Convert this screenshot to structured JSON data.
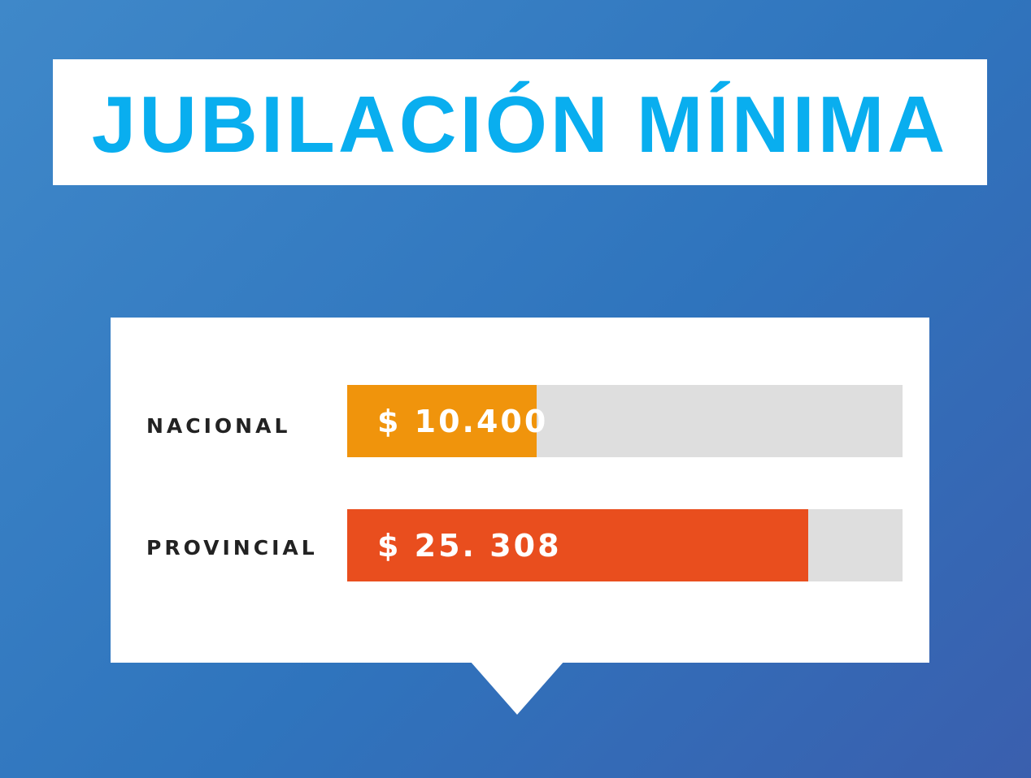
{
  "header": {
    "title": "JUBILACIÓN MÍNIMA"
  },
  "colors": {
    "title": "#09aeef",
    "nacional_bar": "#f0940c",
    "provincial_bar": "#e94e1e",
    "track": "#dedede"
  },
  "chart_data": {
    "type": "bar",
    "orientation": "horizontal",
    "title": "JUBILACIÓN MÍNIMA",
    "xlabel": "",
    "ylabel": "",
    "categories": [
      "NACIONAL",
      "PROVINCIAL"
    ],
    "values": [
      10400,
      25308
    ],
    "value_labels": [
      "$ 10.400",
      "$ 25. 308"
    ],
    "xlim": [
      0,
      30500
    ],
    "grid": false,
    "legend": "none"
  }
}
